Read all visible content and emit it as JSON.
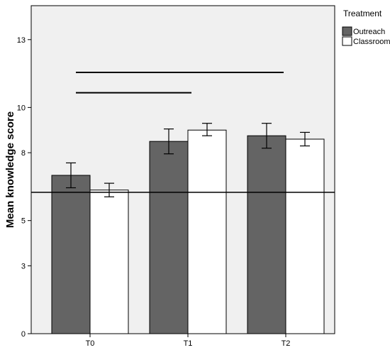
{
  "chart_data": {
    "type": "bar",
    "title": "",
    "xlabel": "",
    "ylabel": "Mean knowledge score",
    "ylim": [
      0,
      14.5
    ],
    "y_ticks": [
      0,
      3,
      5,
      8,
      10,
      13
    ],
    "y_tick_labels": [
      "0",
      "3",
      "5",
      "8",
      "10",
      "13"
    ],
    "categories": [
      "T0",
      "T1",
      "T2"
    ],
    "legend_title": "Treatment",
    "legend_position": "outside-right",
    "grid": false,
    "series": [
      {
        "name": "Outreach",
        "color": "#646464",
        "values": [
          7.0,
          8.5,
          8.75
        ],
        "error_low": [
          6.45,
          7.95,
          8.2
        ],
        "error_high": [
          7.55,
          9.05,
          9.3
        ]
      },
      {
        "name": "Classroom",
        "color": "#ffffff",
        "values": [
          6.35,
          9.0,
          8.6
        ],
        "error_low": [
          6.05,
          8.75,
          8.3
        ],
        "error_high": [
          6.65,
          9.3,
          8.9
        ]
      }
    ],
    "reference_line": 6.25,
    "significance_brackets": [
      {
        "from": "T0",
        "to": "T1",
        "y": 10.65
      },
      {
        "from": "T0",
        "to": "T2",
        "y": 11.55
      }
    ]
  }
}
